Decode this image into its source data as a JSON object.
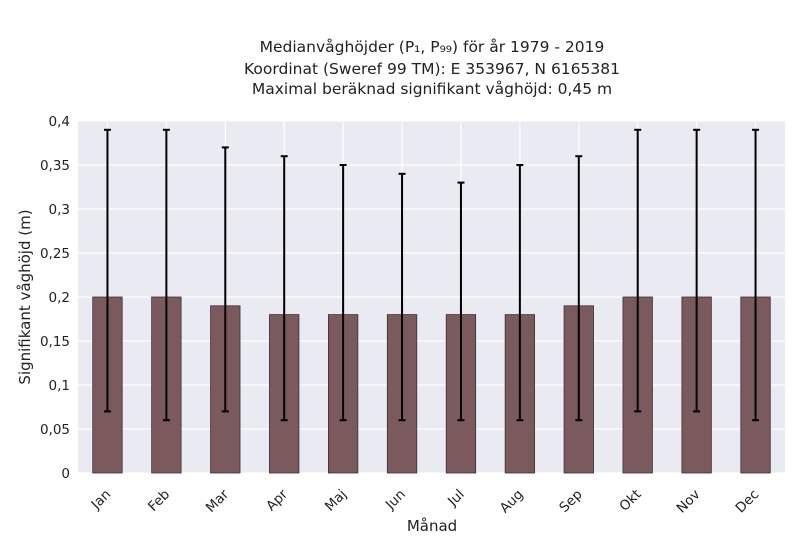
{
  "chart_data": {
    "type": "bar",
    "title_lines": [
      "Medianvåghöjder (P₁, P₉₉) för år 1979 - 2019",
      "Koordinat (Sweref 99 TM): E 353967, N 6165381",
      "Maximal beräknad signifikant våghöjd: 0,45 m"
    ],
    "xlabel": "Månad",
    "ylabel": "Signifikant våghöjd (m)",
    "categories": [
      "Jan",
      "Feb",
      "Mar",
      "Apr",
      "Maj",
      "Jun",
      "Jul",
      "Aug",
      "Sep",
      "Okt",
      "Nov",
      "Dec"
    ],
    "values": [
      0.2,
      0.2,
      0.19,
      0.18,
      0.18,
      0.18,
      0.18,
      0.18,
      0.19,
      0.2,
      0.2,
      0.2
    ],
    "p1": [
      0.07,
      0.06,
      0.07,
      0.06,
      0.06,
      0.06,
      0.06,
      0.06,
      0.06,
      0.07,
      0.07,
      0.06
    ],
    "p99": [
      0.39,
      0.39,
      0.37,
      0.36,
      0.35,
      0.34,
      0.33,
      0.35,
      0.36,
      0.39,
      0.39,
      0.39
    ],
    "ylim": [
      0,
      0.4
    ],
    "yticks": [
      0,
      0.05,
      0.1,
      0.15,
      0.2,
      0.25,
      0.3,
      0.35,
      0.4
    ],
    "ytick_labels": [
      "0",
      "0,05",
      "0,1",
      "0,15",
      "0,2",
      "0,25",
      "0,3",
      "0,35",
      "0,4"
    ],
    "grid": true,
    "bar_color": "#7b5a5d",
    "plot_background": "#eaeaf2",
    "errorbar_color": "#000000"
  }
}
